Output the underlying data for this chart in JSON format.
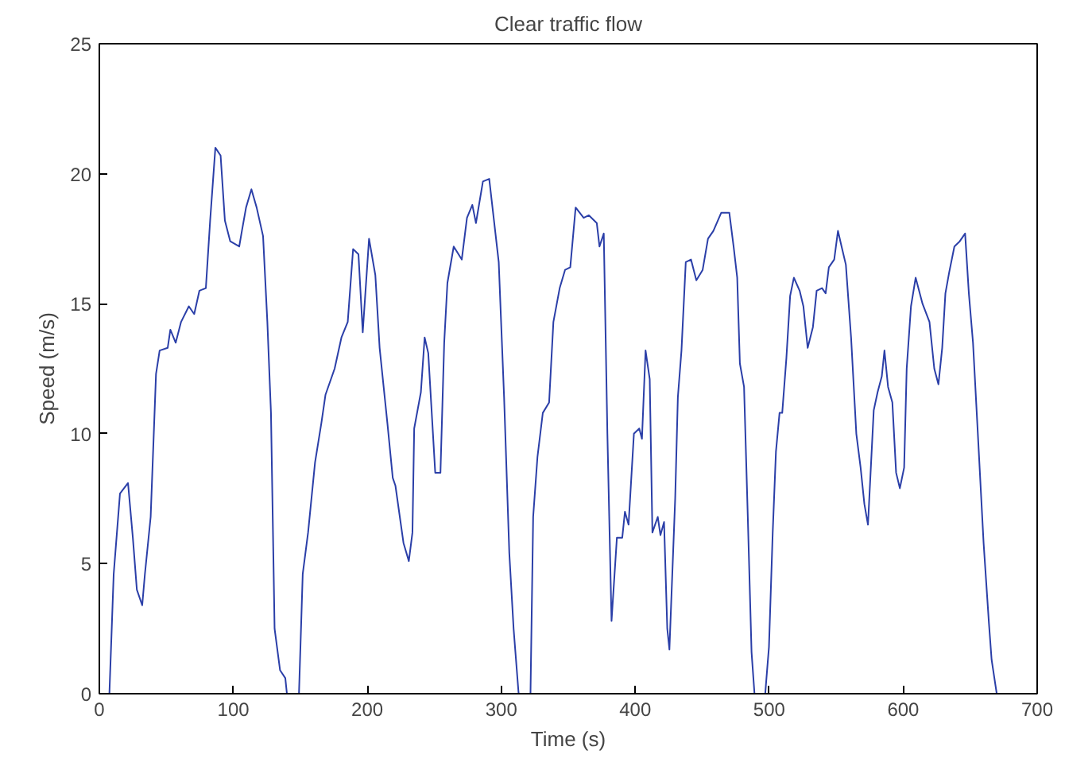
{
  "chart_data": {
    "type": "line",
    "title": "Clear traffic flow",
    "xlabel": "Time (s)",
    "ylabel": "Speed (m/s)",
    "xlim": [
      0,
      700
    ],
    "xticks": [
      0,
      100,
      200,
      300,
      400,
      500,
      600,
      700
    ],
    "ylim": [
      0,
      25
    ],
    "yticks": [
      0,
      5,
      10,
      15,
      20,
      25
    ],
    "grid": false,
    "series": [
      {
        "color": "#2b3fa8",
        "x": [
          0,
          7.5,
          10.7,
          15.4,
          21.4,
          25,
          28,
          32,
          34,
          38.3,
          42.3,
          45,
          51,
          53,
          57,
          61,
          66.8,
          70.8,
          74.7,
          79.5,
          82.7,
          86.6,
          90.5,
          93.7,
          97.7,
          104.4,
          106.4,
          109.5,
          113.5,
          117.4,
          122.2,
          125.4,
          128.1,
          130.8,
          134.9,
          138.8,
          140,
          149,
          151.8,
          155.8,
          161,
          165.7,
          168.8,
          175.6,
          180.7,
          185.4,
          189.4,
          193.4,
          196.6,
          201.3,
          206,
          209.2,
          215,
          219,
          221,
          227,
          231,
          233.7,
          235,
          240,
          242.8,
          245.5,
          250.7,
          254.6,
          257.4,
          259.8,
          264.5,
          270.5,
          274.4,
          278.4,
          281.1,
          286.3,
          291,
          298.1,
          302.1,
          306,
          309.2,
          312.8,
          313,
          321.8,
          323.8,
          327,
          331,
          335.7,
          338.9,
          343.6,
          347.6,
          351.5,
          355.5,
          361.5,
          365.4,
          371.3,
          373.3,
          376.5,
          379.2,
          382.3,
          386.3,
          390.3,
          392.3,
          395,
          399,
          403,
          405,
          407.7,
          410.8,
          412.8,
          416.8,
          418.8,
          421.5,
          423.9,
          425.5,
          429.8,
          431.8,
          434.5,
          437.7,
          441.6,
          445.6,
          450.3,
          454.3,
          458.3,
          464.2,
          470.2,
          473.4,
          476.1,
          478.1,
          481.2,
          484,
          486.8,
          489,
          497,
          499.8,
          502.6,
          505,
          507.7,
          509.7,
          512.8,
          515.6,
          518.4,
          522.7,
          525.5,
          528.7,
          532.6,
          535.4,
          539.4,
          542.1,
          544.5,
          548.5,
          551.3,
          554,
          557.2,
          561.1,
          565,
          568.2,
          571,
          573.7,
          578,
          580.9,
          584,
          586,
          588.7,
          591.9,
          594.7,
          597.5,
          600.7,
          602.6,
          605.8,
          609.3,
          614.4,
          619.6,
          623.2,
          626.3,
          629.1,
          631.5,
          634.3,
          638.2,
          642.2,
          646.2,
          649,
          652.1,
          655.3,
          660,
          664,
          666,
          669.8,
          674
        ],
        "values": [
          0,
          0,
          4.6,
          7.7,
          8.1,
          6.0,
          4.0,
          3.4,
          4.6,
          6.8,
          12.3,
          13.2,
          13.3,
          14.0,
          13.5,
          14.3,
          14.9,
          14.6,
          15.5,
          15.6,
          18.2,
          21.0,
          20.7,
          18.2,
          17.4,
          17.2,
          17.8,
          18.7,
          19.4,
          18.7,
          17.6,
          14.3,
          10.8,
          2.5,
          0.9,
          0.6,
          0,
          0,
          4.6,
          6.2,
          8.9,
          10.4,
          11.5,
          12.5,
          13.7,
          14.3,
          17.1,
          16.9,
          13.9,
          17.5,
          16.1,
          13.3,
          10.4,
          8.3,
          8.0,
          5.8,
          5.1,
          6.2,
          10.2,
          11.6,
          13.7,
          13.1,
          8.5,
          8.5,
          13.5,
          15.8,
          17.2,
          16.7,
          18.3,
          18.8,
          18.1,
          19.7,
          19.8,
          16.6,
          11.4,
          5.4,
          2.5,
          0.1,
          0,
          0,
          6.8,
          9.1,
          10.8,
          11.2,
          14.3,
          15.6,
          16.3,
          16.4,
          18.7,
          18.3,
          18.4,
          18.1,
          17.2,
          17.7,
          10.0,
          2.8,
          6.0,
          6.0,
          7.0,
          6.5,
          10.0,
          10.2,
          9.8,
          13.2,
          12.1,
          6.2,
          6.8,
          6.1,
          6.6,
          2.5,
          1.7,
          7.5,
          11.4,
          13.2,
          16.6,
          16.7,
          15.9,
          16.3,
          17.5,
          17.8,
          18.5,
          18.5,
          17.2,
          16.0,
          12.7,
          11.8,
          6.8,
          1.6,
          0,
          0,
          1.8,
          6.2,
          9.3,
          10.8,
          10.8,
          12.9,
          15.3,
          16.0,
          15.5,
          14.9,
          13.3,
          14.1,
          15.5,
          15.6,
          15.4,
          16.4,
          16.7,
          17.8,
          17.2,
          16.5,
          13.7,
          10.0,
          8.7,
          7.3,
          6.5,
          10.9,
          11.6,
          12.2,
          13.2,
          11.8,
          11.2,
          8.5,
          7.9,
          8.7,
          12.5,
          14.9,
          16.0,
          15.0,
          14.3,
          12.5,
          11.9,
          13.3,
          15.4,
          16.2,
          17.2,
          17.4,
          17.7,
          15.4,
          13.5,
          10.4,
          5.8,
          2.7,
          1.3,
          0,
          0
        ]
      }
    ]
  }
}
